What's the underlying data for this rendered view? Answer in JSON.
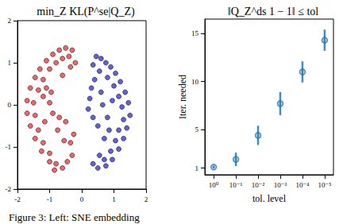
{
  "chart_data": [
    {
      "type": "scatter",
      "title": "min_Z KL(P^se|Q_Z)",
      "xlim": [
        -2,
        2
      ],
      "xticks": [
        -2,
        -1,
        0,
        1,
        2
      ],
      "ylim": [
        -2,
        2
      ],
      "yticks": [
        -2,
        -1,
        0,
        1,
        2
      ],
      "grid": false,
      "marker": "circle",
      "series": [
        {
          "color": "#e8333a",
          "values": [
            [
              -0.3,
              1.3
            ],
            [
              -0.5,
              1.35
            ],
            [
              -0.7,
              1.3
            ],
            [
              -0.9,
              1.2
            ],
            [
              -0.4,
              1.15
            ],
            [
              -0.6,
              1.1
            ],
            [
              -1.1,
              1.05
            ],
            [
              -0.8,
              1.0
            ],
            [
              -1.3,
              0.85
            ],
            [
              -1.0,
              0.85
            ],
            [
              -1.45,
              0.65
            ],
            [
              -1.2,
              0.6
            ],
            [
              -1.6,
              0.4
            ],
            [
              -1.35,
              0.35
            ],
            [
              -1.7,
              0.1
            ],
            [
              -1.5,
              0.05
            ],
            [
              -1.7,
              -0.2
            ],
            [
              -1.45,
              -0.25
            ],
            [
              -1.6,
              -0.5
            ],
            [
              -1.35,
              -0.6
            ],
            [
              -1.45,
              -0.8
            ],
            [
              -1.2,
              -0.9
            ],
            [
              -1.25,
              -1.1
            ],
            [
              -1.0,
              -1.15
            ],
            [
              -1.0,
              -1.35
            ],
            [
              -0.8,
              -1.4
            ],
            [
              -0.6,
              -1.5
            ],
            [
              -0.85,
              -1.55
            ],
            [
              -0.45,
              -1.35
            ],
            [
              -0.3,
              -1.2
            ],
            [
              -0.95,
              0.3
            ],
            [
              -1.0,
              0.05
            ],
            [
              -0.9,
              -0.2
            ],
            [
              -0.7,
              -0.3
            ],
            [
              -0.5,
              -0.4
            ],
            [
              -1.1,
              0.4
            ],
            [
              -0.6,
              0.7
            ],
            [
              -0.35,
              0.9
            ],
            [
              -0.2,
              1.0
            ],
            [
              -0.75,
              -0.6
            ],
            [
              -0.55,
              -0.85
            ],
            [
              -0.35,
              -0.9
            ],
            [
              -0.25,
              -0.7
            ],
            [
              -1.2,
              0.2
            ],
            [
              -1.15,
              -0.4
            ]
          ]
        },
        {
          "color": "#2b2bd6",
          "values": [
            [
              0.45,
              1.15
            ],
            [
              0.6,
              1.1
            ],
            [
              0.35,
              0.95
            ],
            [
              0.75,
              1.0
            ],
            [
              0.9,
              0.9
            ],
            [
              0.55,
              0.8
            ],
            [
              1.05,
              0.75
            ],
            [
              0.8,
              0.65
            ],
            [
              1.2,
              0.55
            ],
            [
              1.0,
              0.45
            ],
            [
              1.35,
              0.3
            ],
            [
              1.15,
              0.2
            ],
            [
              1.45,
              0.05
            ],
            [
              1.25,
              -0.05
            ],
            [
              1.5,
              -0.25
            ],
            [
              1.3,
              -0.35
            ],
            [
              1.4,
              -0.55
            ],
            [
              1.15,
              -0.6
            ],
            [
              1.3,
              -0.8
            ],
            [
              1.05,
              -0.85
            ],
            [
              1.15,
              -1.05
            ],
            [
              0.9,
              -1.1
            ],
            [
              0.95,
              -1.3
            ],
            [
              0.7,
              -1.3
            ],
            [
              0.75,
              -1.45
            ],
            [
              0.5,
              -1.5
            ],
            [
              0.35,
              -1.4
            ],
            [
              0.55,
              -1.2
            ],
            [
              0.2,
              -0.1
            ],
            [
              0.25,
              0.15
            ],
            [
              0.35,
              -0.3
            ],
            [
              0.3,
              0.4
            ],
            [
              0.5,
              -0.5
            ],
            [
              0.6,
              0.3
            ],
            [
              0.7,
              -0.8
            ],
            [
              0.85,
              -0.6
            ],
            [
              0.4,
              0.6
            ],
            [
              0.95,
              0.1
            ],
            [
              0.65,
              0.0
            ],
            [
              0.8,
              -0.3
            ]
          ]
        }
      ]
    },
    {
      "type": "errorbar",
      "title": "‖Q_Z^ds 1 − 1‖ ≤ tol",
      "x_label": "tol. level",
      "y_label": "Iter. needed",
      "log": "x",
      "grid": false,
      "marker": "circle",
      "color": "#1f77b4",
      "xlim": [
        2.5,
        4e-06
      ],
      "xticks": [
        {
          "value": 1,
          "label": "10⁰"
        },
        {
          "value": 0.1,
          "label": "10⁻¹"
        },
        {
          "value": 0.01,
          "label": "10⁻²"
        },
        {
          "value": 0.001,
          "label": "10⁻³"
        },
        {
          "value": 0.0001,
          "label": "10⁻⁴"
        },
        {
          "value": 1e-05,
          "label": "10⁻⁵"
        }
      ],
      "ylim": [
        0.3,
        16.5
      ],
      "yticks": [
        1,
        5,
        10,
        15
      ],
      "x": [
        1,
        0.1,
        0.01,
        0.001,
        0.0001,
        1e-05
      ],
      "values": [
        1.1,
        1.9,
        4.4,
        7.7,
        11.0,
        14.3
      ],
      "errors": [
        0.15,
        0.7,
        1.0,
        1.2,
        1.1,
        1.1
      ]
    }
  ],
  "caption": "Figure 3: Left: SNE embedding"
}
